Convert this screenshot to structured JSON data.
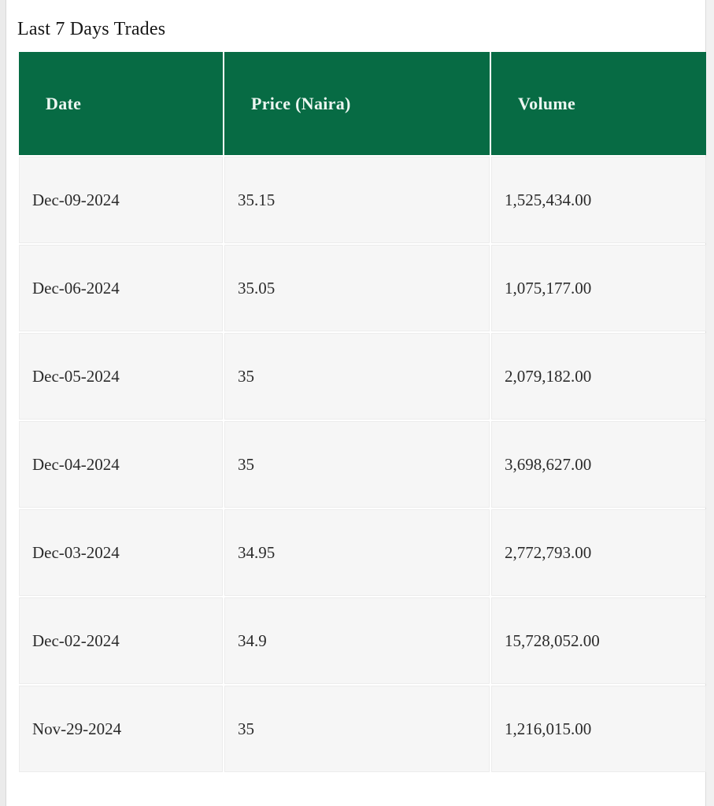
{
  "page": {
    "title": "Last 7 Days Trades"
  },
  "table": {
    "columns": [
      {
        "key": "date",
        "label": "Date"
      },
      {
        "key": "price",
        "label": "Price (Naira)"
      },
      {
        "key": "volume",
        "label": "Volume"
      }
    ],
    "rows": [
      {
        "date": "Dec-09-2024",
        "price": "35.15",
        "volume": "1,525,434.00"
      },
      {
        "date": "Dec-06-2024",
        "price": "35.05",
        "volume": "1,075,177.00"
      },
      {
        "date": "Dec-05-2024",
        "price": "35",
        "volume": "2,079,182.00"
      },
      {
        "date": "Dec-04-2024",
        "price": "35",
        "volume": "3,698,627.00"
      },
      {
        "date": "Dec-03-2024",
        "price": "34.95",
        "volume": "2,772,793.00"
      },
      {
        "date": "Dec-02-2024",
        "price": "34.9",
        "volume": "15,728,052.00"
      },
      {
        "date": "Nov-29-2024",
        "price": "35",
        "volume": "1,216,015.00"
      }
    ]
  },
  "colors": {
    "header_bg": "#076b44",
    "header_text": "#ecf6f1",
    "row_bg": "#f6f6f6",
    "page_bg": "#ffffff",
    "gutter_bg": "#ebebeb"
  }
}
